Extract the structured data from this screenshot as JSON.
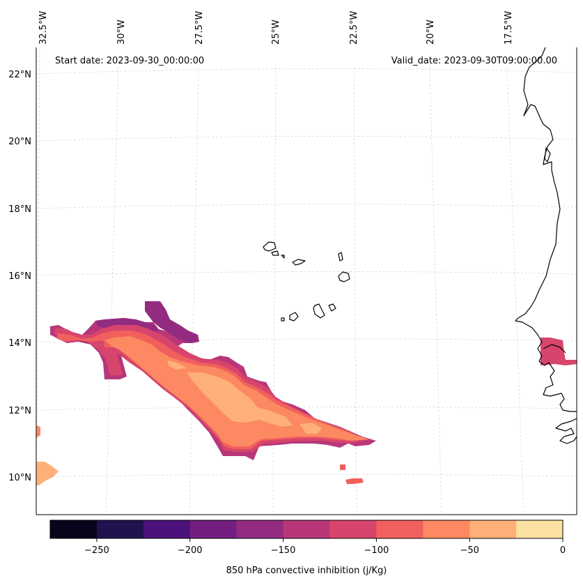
{
  "header": {
    "start_date": "Start date: 2023-09-30_00:00:00",
    "valid_date": "Valid_date: 2023-09-30T09:00:00.00"
  },
  "lon_labels": [
    "32.5°W",
    "30°W",
    "27.5°W",
    "25°W",
    "22.5°W",
    "20°W",
    "17.5°W"
  ],
  "lat_labels": [
    "22°N",
    "20°N",
    "18°N",
    "16°N",
    "14°N",
    "12°N",
    "10°N"
  ],
  "colorbar": {
    "label": "850 hPa convective inhibition (j/Kg)",
    "ticks": [
      "−250",
      "−200",
      "−150",
      "−100",
      "−50",
      "0"
    ],
    "levels": [
      -275,
      -250,
      -225,
      -200,
      -175,
      -150,
      -125,
      -100,
      -75,
      -50,
      -25,
      0
    ],
    "colors": [
      "#07061c",
      "#21114e",
      "#4c117a",
      "#721f81",
      "#932b80",
      "#b73779",
      "#d8456c",
      "#f1605d",
      "#fc8961",
      "#feb078",
      "#fde1a2"
    ]
  },
  "colors": {
    "coastline": "#000000",
    "grid": "#d0d0d0",
    "frame": "#000000"
  }
}
